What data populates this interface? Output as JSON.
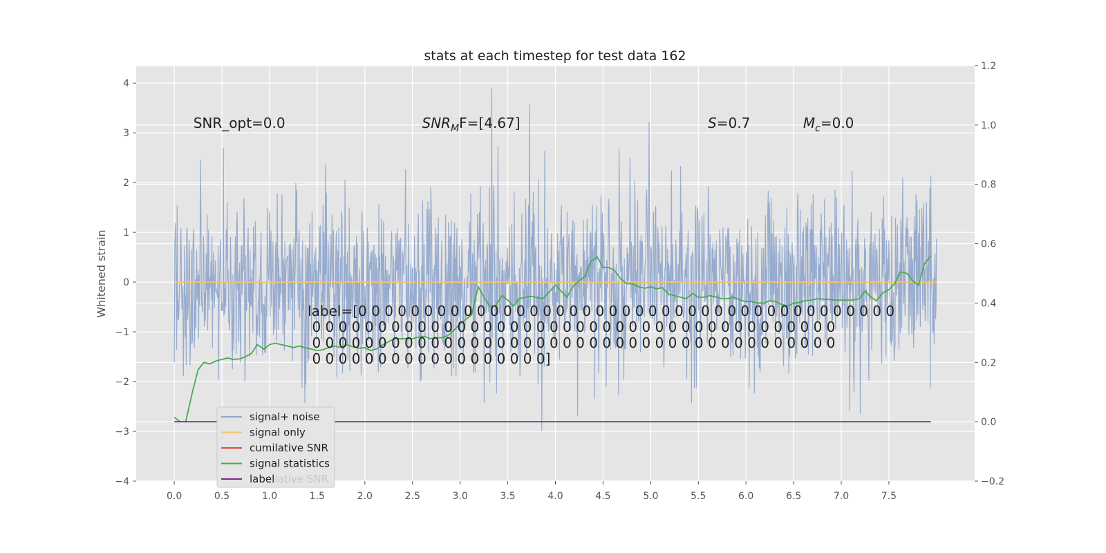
{
  "chart_data": {
    "type": "line",
    "title": "stats at each timestep for test data 162",
    "ylabel": "Whitened strain",
    "xlim": [
      -0.4,
      8.4
    ],
    "ylim": [
      -4,
      4.35
    ],
    "y2lim": [
      -0.2,
      1.2
    ],
    "xticks": [
      0.0,
      0.5,
      1.0,
      1.5,
      2.0,
      2.5,
      3.0,
      3.5,
      4.0,
      4.5,
      5.0,
      5.5,
      6.0,
      6.5,
      7.0,
      7.5
    ],
    "xtick_labels": [
      "0.0",
      "0.5",
      "1.0",
      "1.5",
      "2.0",
      "2.5",
      "3.0",
      "3.5",
      "4.0",
      "4.5",
      "5.0",
      "5.5",
      "6.0",
      "6.5",
      "7.0",
      "7.5"
    ],
    "yticks": [
      4,
      3,
      2,
      1,
      0,
      -1,
      -2,
      -3,
      -4
    ],
    "ytick_labels": [
      "4",
      "3",
      "2",
      "1",
      "0",
      "−1",
      "−2",
      "−3",
      "−4"
    ],
    "y2ticks": [
      1.2,
      1.0,
      0.8,
      0.6,
      0.4,
      0.2,
      0.0,
      -0.2
    ],
    "y2tick_labels": [
      "1.2",
      "1.0",
      "0.8",
      "0.6",
      "0.4",
      "0.2",
      "0.0",
      "−0.2"
    ],
    "grid": true,
    "legend_position": "lower-left",
    "annotations": [
      {
        "id": "snr-opt",
        "text": "SNR_opt=0.0",
        "x": 0.2,
        "y": 3.2
      },
      {
        "id": "snr-mf",
        "text": "SNR",
        "sub": "M",
        "rest": "F=[4.67]",
        "x": 2.6,
        "y": 3.2,
        "italic_prefix": true
      },
      {
        "id": "s-value",
        "text": "S",
        "rest": "=0.7",
        "x": 5.6,
        "y": 3.2,
        "italic_prefix": true
      },
      {
        "id": "mc-value",
        "text": "M",
        "sub": "c",
        "rest": "=0.0",
        "x": 6.6,
        "y": 3.2,
        "italic_prefix": true
      }
    ],
    "label_text_lines": [
      "label=[0 0 0 0 0 0 0 0 0 0 0 0 0 0 0 0 0 0 0 0 0 0 0 0 0 0 0 0 0 0 0 0 0 0 0 0 0 0 0 0 0",
      " 0 0 0 0 0 0 0 0 0 0 0 0 0 0 0 0 0 0 0 0 0 0 0 0 0 0 0 0 0 0 0 0 0 0 0 0 0 0 0 0",
      " 0 0 0 0 0 0 0 0 0 0 0 0 0 0 0 0 0 0 0 0 0 0 0 0 0 0 0 0 0 0 0 0 0 0 0 0 0 0 0 0",
      " 0 0 0 0 0 0 0 0 0 0 0 0 0 0 0 0 0 0]"
    ],
    "label_text_pos": {
      "x": 1.4,
      "y": -0.6
    },
    "series": [
      {
        "name": "signal+ noise",
        "color": "#92a8cc",
        "axis": "left",
        "kind": "noise",
        "x_range": [
          0.0,
          8.0
        ],
        "samples": 1600,
        "std": 0.9,
        "seed": 162
      },
      {
        "name": "signal only",
        "color": "#f5c46b",
        "axis": "left",
        "x": [
          0.0,
          8.0
        ],
        "values": [
          0.0,
          0.0
        ]
      },
      {
        "name": "cumilative SNR",
        "color": "#e24a33",
        "axis": "right",
        "x": [],
        "values": []
      },
      {
        "name": "signal statistics",
        "color": "#4aa84f",
        "axis": "right",
        "x": [
          0.0,
          0.06,
          0.12,
          0.19,
          0.25,
          0.31,
          0.37,
          0.44,
          0.5,
          0.56,
          0.62,
          0.69,
          0.75,
          0.81,
          0.87,
          0.94,
          1.0,
          1.06,
          1.12,
          1.19,
          1.25,
          1.31,
          1.37,
          1.44,
          1.5,
          1.56,
          1.62,
          1.69,
          1.75,
          1.81,
          1.87,
          1.94,
          2.0,
          2.06,
          2.12,
          2.19,
          2.25,
          2.31,
          2.37,
          2.44,
          2.5,
          2.56,
          2.62,
          2.69,
          2.75,
          2.81,
          2.87,
          2.94,
          3.0,
          3.06,
          3.12,
          3.19,
          3.25,
          3.31,
          3.37,
          3.44,
          3.5,
          3.56,
          3.62,
          3.69,
          3.75,
          3.81,
          3.87,
          3.94,
          4.0,
          4.06,
          4.12,
          4.19,
          4.25,
          4.31,
          4.37,
          4.44,
          4.5,
          4.56,
          4.62,
          4.69,
          4.75,
          4.81,
          4.87,
          4.94,
          5.0,
          5.06,
          5.12,
          5.19,
          5.25,
          5.31,
          5.37,
          5.44,
          5.5,
          5.56,
          5.62,
          5.69,
          5.75,
          5.81,
          5.87,
          5.94,
          6.0,
          6.06,
          6.12,
          6.19,
          6.25,
          6.31,
          6.37,
          6.44,
          6.5,
          6.56,
          6.62,
          6.69,
          6.75,
          6.81,
          6.87,
          6.94,
          7.0,
          7.06,
          7.12,
          7.19,
          7.25,
          7.31,
          7.37,
          7.44,
          7.5,
          7.56,
          7.62,
          7.69,
          7.75,
          7.81,
          7.87,
          7.94
        ],
        "values": [
          0.015,
          0.0,
          0.0,
          0.1,
          0.175,
          0.2,
          0.195,
          0.205,
          0.21,
          0.215,
          0.21,
          0.212,
          0.22,
          0.23,
          0.26,
          0.245,
          0.26,
          0.265,
          0.26,
          0.255,
          0.25,
          0.255,
          0.25,
          0.245,
          0.24,
          0.243,
          0.25,
          0.255,
          0.25,
          0.26,
          0.253,
          0.248,
          0.25,
          0.24,
          0.245,
          0.26,
          0.27,
          0.28,
          0.28,
          0.28,
          0.28,
          0.285,
          0.288,
          0.28,
          0.283,
          0.283,
          0.29,
          0.31,
          0.33,
          0.345,
          0.36,
          0.455,
          0.42,
          0.39,
          0.39,
          0.425,
          0.41,
          0.39,
          0.415,
          0.42,
          0.423,
          0.418,
          0.415,
          0.44,
          0.46,
          0.44,
          0.42,
          0.458,
          0.475,
          0.49,
          0.54,
          0.555,
          0.52,
          0.52,
          0.51,
          0.48,
          0.465,
          0.465,
          0.455,
          0.45,
          0.455,
          0.448,
          0.452,
          0.43,
          0.425,
          0.42,
          0.415,
          0.432,
          0.42,
          0.42,
          0.425,
          0.42,
          0.415,
          0.415,
          0.42,
          0.41,
          0.405,
          0.405,
          0.4,
          0.4,
          0.408,
          0.405,
          0.396,
          0.39,
          0.4,
          0.402,
          0.408,
          0.41,
          0.415,
          0.413,
          0.412,
          0.41,
          0.41,
          0.41,
          0.41,
          0.415,
          0.44,
          0.42,
          0.408,
          0.435,
          0.445,
          0.465,
          0.505,
          0.5,
          0.475,
          0.46,
          0.53,
          0.56
        ]
      },
      {
        "name": "label",
        "color": "#7b2a8c",
        "axis": "right",
        "x": [
          0.0,
          7.94
        ],
        "values": [
          0.0,
          0.0
        ]
      }
    ],
    "legend_entries": [
      {
        "name": "signal+ noise",
        "color": "#92a8cc"
      },
      {
        "name": "signal only",
        "color": "#f5c46b"
      },
      {
        "name": "cumilative SNR",
        "color": "#e24a33"
      },
      {
        "name": "signal statistics",
        "color": "#4aa84f"
      },
      {
        "name": "label",
        "color": "#7b2a8c"
      }
    ],
    "legend_overlap_text": "cumilative SNR"
  }
}
